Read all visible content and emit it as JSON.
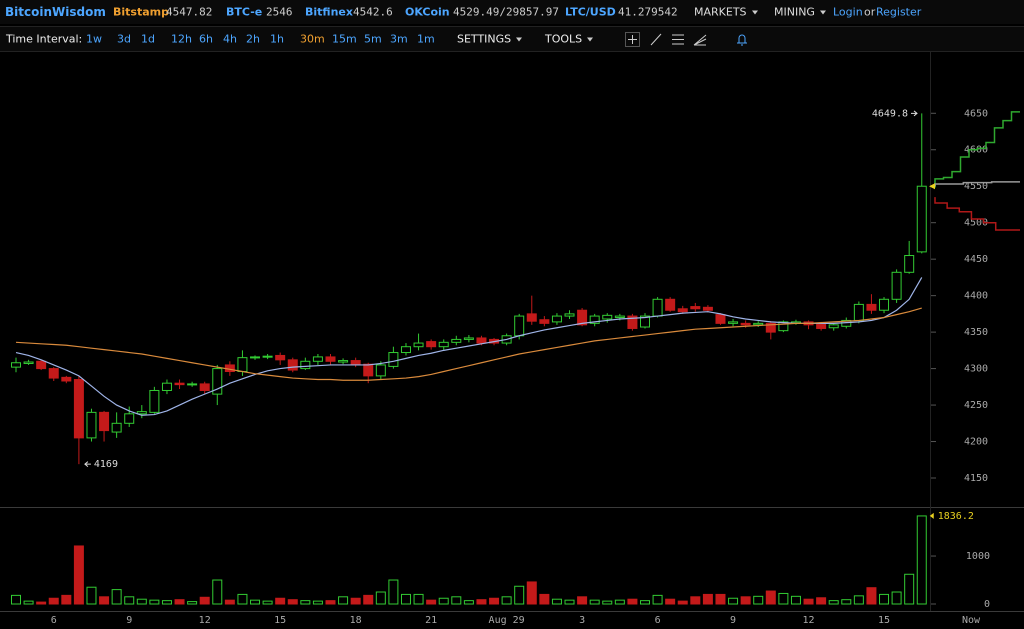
{
  "header": {
    "logo": "BitcoinWisdom",
    "tickers": [
      {
        "name": "Bitstamp",
        "price": 4547.82,
        "color": "#f0a030"
      },
      {
        "name": "BTC-e",
        "price": 2546,
        "color": "#4da6ff"
      },
      {
        "name": "Bitfinex",
        "price": 4542.6,
        "color": "#4da6ff"
      },
      {
        "name": "OKCoin",
        "price": "4529.49/29857.97",
        "color": "#4da6ff"
      },
      {
        "name": "LTC/USD",
        "price": 41.279542,
        "color": "#4da6ff"
      }
    ],
    "menus": [
      "MARKETS",
      "MINING"
    ],
    "login": "Login",
    "or": "or",
    "register": "Register"
  },
  "toolbar": {
    "label": "Time Interval:",
    "intervals": [
      "1w",
      "3d",
      "1d",
      "12h",
      "6h",
      "4h",
      "2h",
      "1h",
      "30m",
      "15m",
      "5m",
      "3m",
      "1m"
    ],
    "selected": 8,
    "menus": [
      "SETTINGS",
      "TOOLS"
    ]
  },
  "chart_data": {
    "type": "candlestick",
    "categories": [
      null,
      null,
      null,
      "6",
      null,
      null,
      null,
      null,
      null,
      "9",
      null,
      null,
      null,
      null,
      null,
      "12",
      null,
      null,
      null,
      null,
      null,
      "15",
      null,
      null,
      null,
      null,
      null,
      "18",
      null,
      null,
      null,
      null,
      null,
      "21",
      null,
      null,
      null,
      null,
      null,
      "Aug 29",
      null,
      null,
      null,
      null,
      null,
      "3",
      null,
      null,
      null,
      null,
      null,
      "6",
      null,
      null,
      null,
      null,
      null,
      "9",
      null,
      null,
      null,
      null,
      null,
      "12",
      null,
      null,
      null,
      null,
      null,
      "15",
      null,
      null,
      null
    ],
    "end_label": "Now",
    "open": [
      4302,
      4307,
      4310,
      4300,
      4288,
      4285,
      4205,
      4240,
      4213,
      4225,
      4238,
      4240,
      4270,
      4280,
      4278,
      4279,
      4265,
      4305,
      4296,
      4315,
      4316,
      4318,
      4312,
      4300,
      4310,
      4316,
      4309,
      4311,
      4306,
      4290,
      4303,
      4322,
      4330,
      4337,
      4330,
      4336,
      4340,
      4342,
      4340,
      4335,
      4345,
      4375,
      4367,
      4364,
      4372,
      4380,
      4362,
      4368,
      4370,
      4372,
      4357,
      4372,
      4395,
      4382,
      4385,
      4384,
      4374,
      4362,
      4362,
      4360,
      4362,
      4352,
      4362,
      4364,
      4362,
      4356,
      4358,
      4366,
      4388,
      4380,
      4395,
      4432,
      4460
    ],
    "high": [
      4315,
      4312,
      4312,
      4302,
      4290,
      4290,
      4245,
      4242,
      4240,
      4248,
      4250,
      4275,
      4285,
      4285,
      4282,
      4282,
      4305,
      4310,
      4325,
      4318,
      4320,
      4322,
      4315,
      4315,
      4320,
      4320,
      4314,
      4315,
      4308,
      4310,
      4330,
      4335,
      4348,
      4340,
      4340,
      4345,
      4346,
      4345,
      4342,
      4348,
      4375,
      4400,
      4372,
      4376,
      4380,
      4383,
      4375,
      4376,
      4375,
      4375,
      4376,
      4398,
      4398,
      4386,
      4390,
      4387,
      4376,
      4368,
      4366,
      4365,
      4365,
      4366,
      4367,
      4366,
      4364,
      4362,
      4370,
      4392,
      4402,
      4398,
      4436,
      4475,
      4649.8
    ],
    "low": [
      4295,
      4305,
      4298,
      4283,
      4280,
      4169,
      4200,
      4200,
      4205,
      4220,
      4232,
      4238,
      4265,
      4272,
      4275,
      4265,
      4250,
      4290,
      4290,
      4312,
      4313,
      4305,
      4295,
      4298,
      4305,
      4305,
      4306,
      4302,
      4280,
      4285,
      4300,
      4318,
      4325,
      4326,
      4325,
      4332,
      4336,
      4332,
      4332,
      4332,
      4340,
      4360,
      4358,
      4360,
      4368,
      4358,
      4358,
      4363,
      4366,
      4352,
      4355,
      4370,
      4378,
      4375,
      4378,
      4377,
      4360,
      4358,
      4356,
      4357,
      4340,
      4350,
      4360,
      4354,
      4352,
      4352,
      4355,
      4362,
      4375,
      4376,
      4390,
      4430,
      4458
    ],
    "close": [
      4308,
      4309,
      4300,
      4287,
      4283,
      4205,
      4240,
      4215,
      4225,
      4238,
      4241,
      4270,
      4280,
      4278,
      4279,
      4270,
      4300,
      4296,
      4315,
      4316,
      4317,
      4312,
      4298,
      4310,
      4316,
      4310,
      4311,
      4306,
      4290,
      4305,
      4322,
      4330,
      4335,
      4330,
      4336,
      4340,
      4342,
      4335,
      4335,
      4345,
      4372,
      4365,
      4362,
      4372,
      4375,
      4360,
      4372,
      4373,
      4372,
      4355,
      4372,
      4395,
      4380,
      4378,
      4382,
      4380,
      4362,
      4364,
      4360,
      4362,
      4350,
      4364,
      4364,
      4360,
      4355,
      4360,
      4366,
      4388,
      4380,
      4395,
      4432,
      4455,
      4550
    ],
    "volume": [
      180,
      60,
      40,
      120,
      180,
      1210,
      350,
      150,
      300,
      150,
      100,
      80,
      70,
      90,
      50,
      140,
      500,
      80,
      200,
      80,
      60,
      120,
      90,
      70,
      60,
      70,
      150,
      120,
      180,
      250,
      500,
      200,
      200,
      80,
      120,
      150,
      70,
      90,
      120,
      150,
      370,
      460,
      200,
      100,
      80,
      150,
      80,
      60,
      80,
      100,
      70,
      180,
      100,
      60,
      150,
      200,
      200,
      120,
      150,
      160,
      270,
      220,
      160,
      100,
      130,
      70,
      90,
      170,
      340,
      200,
      250,
      620,
      1836.2
    ],
    "up_color": "#33cc33",
    "down_color": "#c41a1a",
    "moving_averages": [
      {
        "color": "#9fb4e8",
        "values": [
          4322,
          4318,
          4312,
          4305,
          4298,
          4290,
          4276,
          4262,
          4250,
          4242,
          4236,
          4237,
          4242,
          4250,
          4258,
          4265,
          4272,
          4280,
          4286,
          4292,
          4297,
          4300,
          4302,
          4303,
          4304,
          4305,
          4305,
          4305,
          4305,
          4307,
          4310,
          4314,
          4318,
          4321,
          4325,
          4328,
          4331,
          4334,
          4337,
          4340,
          4345,
          4349,
          4353,
          4356,
          4359,
          4362,
          4364,
          4366,
          4368,
          4369,
          4370,
          4372,
          4374,
          4376,
          4377,
          4378,
          4375,
          4371,
          4368,
          4366,
          4364,
          4363,
          4362,
          4362,
          4362,
          4362,
          4363,
          4364,
          4366,
          4370,
          4380,
          4395,
          4425
        ]
      },
      {
        "color": "#d98a3c",
        "values": [
          4336,
          4335,
          4334,
          4333,
          4332,
          4330,
          4328,
          4326,
          4324,
          4322,
          4320,
          4317,
          4314,
          4311,
          4308,
          4305,
          4302,
          4299,
          4296,
          4293,
          4291,
          4289,
          4287,
          4286,
          4285,
          4285,
          4284,
          4284,
          4284,
          4285,
          4286,
          4287,
          4289,
          4292,
          4296,
          4300,
          4304,
          4308,
          4312,
          4316,
          4320,
          4323,
          4326,
          4329,
          4332,
          4335,
          4338,
          4340,
          4342,
          4344,
          4346,
          4348,
          4350,
          4352,
          4354,
          4355,
          4356,
          4357,
          4358,
          4359,
          4360,
          4361,
          4362,
          4362,
          4363,
          4364,
          4365,
          4366,
          4368,
          4370,
          4374,
          4378,
          4383
        ]
      }
    ],
    "depth": [
      {
        "color": "#2fa82f",
        "values": [
          4548,
          4560,
          4562,
          4570,
          4590,
          4600,
          4602,
          4610,
          4630,
          4640,
          4652
        ]
      },
      {
        "color": "#9a9a9a",
        "values": [
          4550,
          4553,
          4555,
          4556
        ]
      },
      {
        "color": "#b01818",
        "values": [
          4535,
          4527,
          4520,
          4515,
          4505,
          4500,
          4490,
          4490
        ]
      }
    ],
    "ylim": [
      4113,
      4734
    ],
    "yticks": [
      4150,
      4200,
      4250,
      4300,
      4350,
      4400,
      4450,
      4500,
      4550,
      4600,
      4650
    ],
    "volume_ylim": [
      0,
      1960
    ],
    "volume_yticks": [
      0,
      1000
    ],
    "marker_color": "#e8d020"
  }
}
